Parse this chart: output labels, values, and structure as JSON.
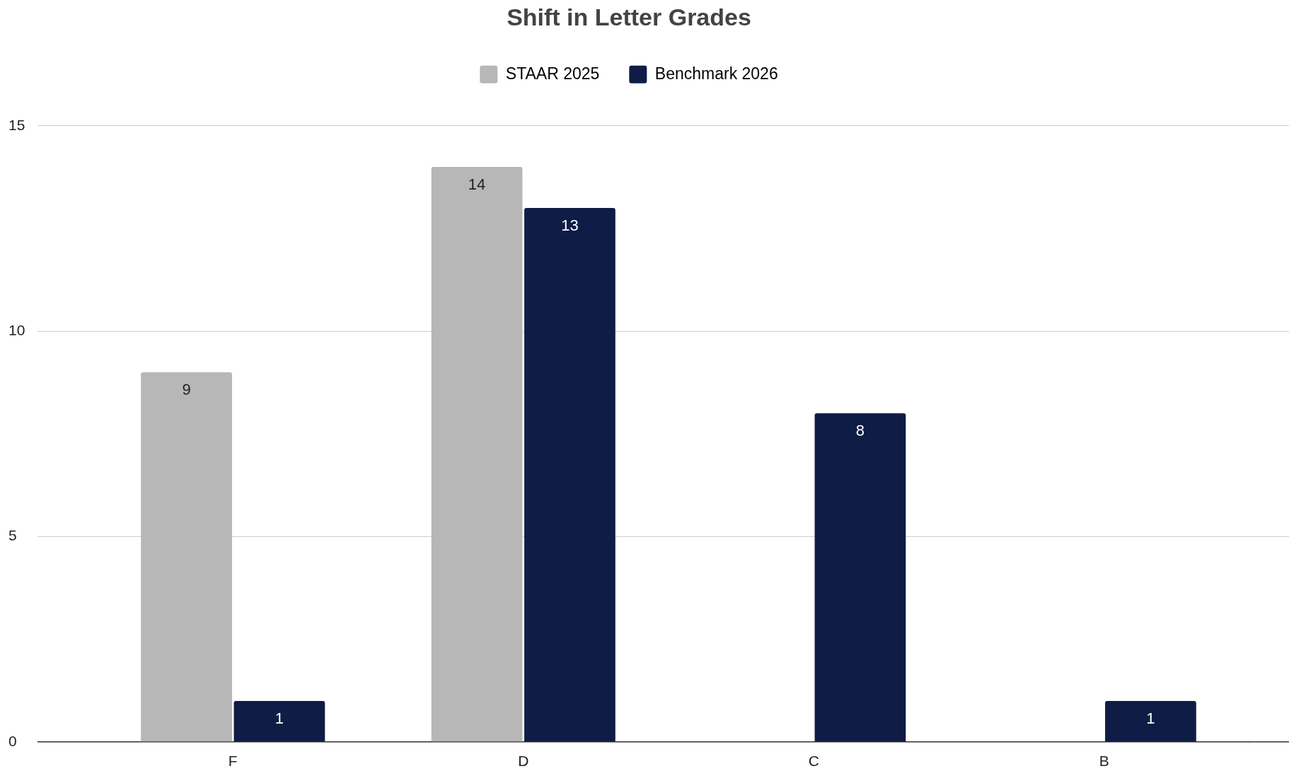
{
  "chart_data": {
    "type": "bar",
    "title": "Shift in Letter Grades",
    "categories": [
      "F",
      "D",
      "C",
      "B"
    ],
    "series": [
      {
        "name": "STAAR 2025",
        "color": "#b7b7b7",
        "values": [
          9,
          14,
          null,
          null
        ]
      },
      {
        "name": "Benchmark 2026",
        "color": "#0f1c45",
        "values": [
          1,
          13,
          8,
          1
        ]
      }
    ],
    "ylim": [
      0,
      15
    ],
    "yticks": [
      0,
      5,
      10,
      15
    ],
    "grid": "y",
    "legend": "top",
    "data_labels": true
  }
}
